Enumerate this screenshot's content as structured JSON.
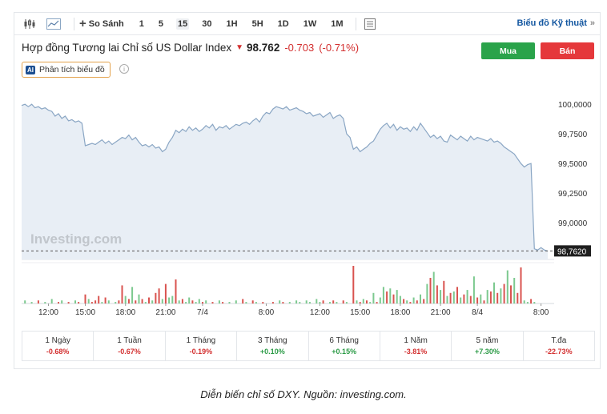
{
  "toolbar": {
    "compare_label": "So Sánh",
    "intervals": [
      "1",
      "5",
      "15",
      "30",
      "1H",
      "5H",
      "1D",
      "1W",
      "1M"
    ],
    "active_interval": "15",
    "tech_chart_label": "Biểu đồ Kỹ thuật",
    "tech_chart_chevron": "»"
  },
  "header": {
    "title": "Hợp đồng Tương lai Chỉ số US Dollar Index",
    "price": "98.762",
    "change": "-0.703",
    "change_pct": "(-0.71%)",
    "buy_label": "Mua",
    "sell_label": "Bán",
    "analysis_badge": "AI",
    "analysis_label": "Phân tích biểu đồ"
  },
  "colors": {
    "line": "#8aa6c4",
    "area": "#e8eef5",
    "vol_up": "#7cc98f",
    "vol_down": "#d9534f",
    "negative": "#d32f2f",
    "positive": "#2a9a45",
    "buy": "#2aa34a",
    "sell": "#e5383b"
  },
  "chart_data": {
    "type": "area",
    "watermark": "Investing.com",
    "ylim": [
      98.69,
      100.15
    ],
    "y_ticks": [
      "100,0000",
      "99,7500",
      "99,5000",
      "99,2500",
      "99,0000"
    ],
    "y_tick_values": [
      100.0,
      99.75,
      99.5,
      99.25,
      99.0
    ],
    "last_value": 98.762,
    "last_label": "98,7620",
    "x_ticks": [
      "12:00",
      "15:00",
      "18:00",
      "21:00",
      "7/4",
      "8:00",
      "12:00",
      "15:00",
      "18:00",
      "21:00",
      "8/4",
      "8:00"
    ],
    "x_tick_index": [
      8,
      19,
      31,
      43,
      54,
      73,
      89,
      101,
      113,
      125,
      136,
      155
    ],
    "series": [
      {
        "values": [
          99.99,
          100.0,
          99.98,
          100.0,
          99.97,
          99.98,
          99.96,
          99.97,
          99.95,
          99.94,
          99.9,
          99.92,
          99.88,
          99.9,
          99.86,
          99.87,
          99.85,
          99.86,
          99.84,
          99.65,
          99.66,
          99.67,
          99.66,
          99.68,
          99.7,
          99.67,
          99.69,
          99.66,
          99.68,
          99.7,
          99.72,
          99.71,
          99.74,
          99.7,
          99.72,
          99.68,
          99.65,
          99.66,
          99.64,
          99.66,
          99.63,
          99.64,
          99.6,
          99.62,
          99.68,
          99.72,
          99.78,
          99.76,
          99.79,
          99.77,
          99.81,
          99.78,
          99.8,
          99.77,
          99.79,
          99.82,
          99.8,
          99.83,
          99.78,
          99.81,
          99.8,
          99.82,
          99.79,
          99.81,
          99.83,
          99.82,
          99.84,
          99.85,
          99.83,
          99.86,
          99.88,
          99.85,
          99.9,
          99.93,
          99.92,
          99.96,
          99.98,
          99.97,
          99.96,
          99.98,
          99.95,
          99.96,
          99.97,
          99.95,
          99.94,
          99.92,
          99.93,
          99.9,
          99.91,
          99.92,
          99.89,
          99.91,
          99.93,
          99.88,
          99.9,
          99.91,
          99.88,
          99.75,
          99.72,
          99.62,
          99.64,
          99.6,
          99.62,
          99.64,
          99.67,
          99.69,
          99.74,
          99.79,
          99.82,
          99.84,
          99.8,
          99.83,
          99.78,
          99.81,
          99.79,
          99.8,
          99.77,
          99.81,
          99.78,
          99.84,
          99.8,
          99.76,
          99.72,
          99.74,
          99.71,
          99.73,
          99.69,
          99.68,
          99.74,
          99.72,
          99.7,
          99.73,
          99.71,
          99.69,
          99.73,
          99.7,
          99.72,
          99.71,
          99.7,
          99.69,
          99.71,
          99.68,
          99.69,
          99.67,
          99.64,
          99.62,
          99.6,
          99.58,
          99.54,
          99.5,
          99.47,
          99.49,
          99.5,
          98.78,
          98.77,
          98.79,
          98.77,
          98.76
        ]
      }
    ],
    "volume": [
      0,
      2,
      0,
      1,
      0,
      2,
      0,
      1,
      0,
      3,
      0,
      1,
      2,
      0,
      1,
      0,
      2,
      1,
      0,
      6,
      3,
      1,
      2,
      5,
      1,
      4,
      2,
      0,
      1,
      2,
      12,
      5,
      3,
      11,
      2,
      6,
      3,
      1,
      4,
      2,
      7,
      10,
      3,
      13,
      4,
      5,
      16,
      2,
      3,
      1,
      4,
      2,
      1,
      3,
      1,
      2,
      0,
      1,
      0,
      2,
      1,
      0,
      1,
      0,
      2,
      0,
      3,
      1,
      0,
      2,
      1,
      0,
      1,
      0,
      0,
      1,
      0,
      2,
      1,
      0,
      1,
      0,
      2,
      1,
      0,
      2,
      1,
      0,
      3,
      1,
      2,
      0,
      1,
      2,
      1,
      0,
      2,
      1,
      0,
      25,
      2,
      1,
      3,
      2,
      1,
      7,
      1,
      4,
      11,
      8,
      10,
      6,
      9,
      5,
      3,
      2,
      1,
      4,
      2,
      6,
      3,
      13,
      17,
      21,
      12,
      9,
      15,
      5,
      7,
      8,
      11,
      4,
      6,
      9,
      5,
      18,
      4,
      6,
      2,
      9,
      8,
      14,
      7,
      10,
      13,
      22,
      12,
      17,
      7,
      24,
      2,
      1,
      3,
      1,
      0
    ],
    "volume_dir": [
      "u",
      "u",
      "d",
      "u",
      "u",
      "d",
      "u",
      "u",
      "d",
      "u",
      "u",
      "d",
      "u",
      "u",
      "d",
      "u",
      "u",
      "d",
      "u",
      "d",
      "u",
      "d",
      "d",
      "d",
      "u",
      "d",
      "u",
      "d",
      "u",
      "d",
      "d",
      "u",
      "d",
      "u",
      "d",
      "u",
      "d",
      "u",
      "d",
      "u",
      "d",
      "d",
      "u",
      "d",
      "u",
      "u",
      "d",
      "u",
      "d",
      "u",
      "u",
      "d",
      "u",
      "u",
      "d",
      "u",
      "u",
      "d",
      "u",
      "u",
      "d",
      "u",
      "u",
      "d",
      "u",
      "u",
      "d",
      "u",
      "u",
      "d",
      "u",
      "u",
      "d",
      "u",
      "u",
      "d",
      "u",
      "u",
      "d",
      "u",
      "u",
      "d",
      "u",
      "u",
      "d",
      "u",
      "u",
      "d",
      "u",
      "u",
      "d",
      "u",
      "u",
      "d",
      "u",
      "u",
      "d",
      "u",
      "u",
      "d",
      "u",
      "d",
      "u",
      "d",
      "u",
      "u",
      "d",
      "u",
      "u",
      "d",
      "u",
      "d",
      "u",
      "u",
      "d",
      "u",
      "d",
      "u",
      "d",
      "u",
      "d",
      "u",
      "d",
      "u",
      "d",
      "u",
      "d",
      "u",
      "d",
      "u",
      "d",
      "u",
      "d",
      "u",
      "d",
      "u",
      "d",
      "u",
      "d",
      "u",
      "d",
      "u",
      "d",
      "u",
      "d",
      "u",
      "d",
      "u",
      "d",
      "d",
      "u",
      "u",
      "d",
      "u",
      "d"
    ]
  },
  "performance": [
    {
      "label": "1 Ngày",
      "value": "-0.68%",
      "dir": "neg"
    },
    {
      "label": "1 Tuần",
      "value": "-0.67%",
      "dir": "neg"
    },
    {
      "label": "1 Tháng",
      "value": "-0.19%",
      "dir": "neg"
    },
    {
      "label": "3 Tháng",
      "value": "+0.10%",
      "dir": "pos"
    },
    {
      "label": "6 Tháng",
      "value": "+0.15%",
      "dir": "pos"
    },
    {
      "label": "1 Năm",
      "value": "-3.81%",
      "dir": "neg"
    },
    {
      "label": "5 năm",
      "value": "+7.30%",
      "dir": "pos"
    },
    {
      "label": "T.đa",
      "value": "-22.73%",
      "dir": "neg"
    }
  ],
  "caption": "Diễn biến chỉ số DXY. Nguồn: investing.com."
}
